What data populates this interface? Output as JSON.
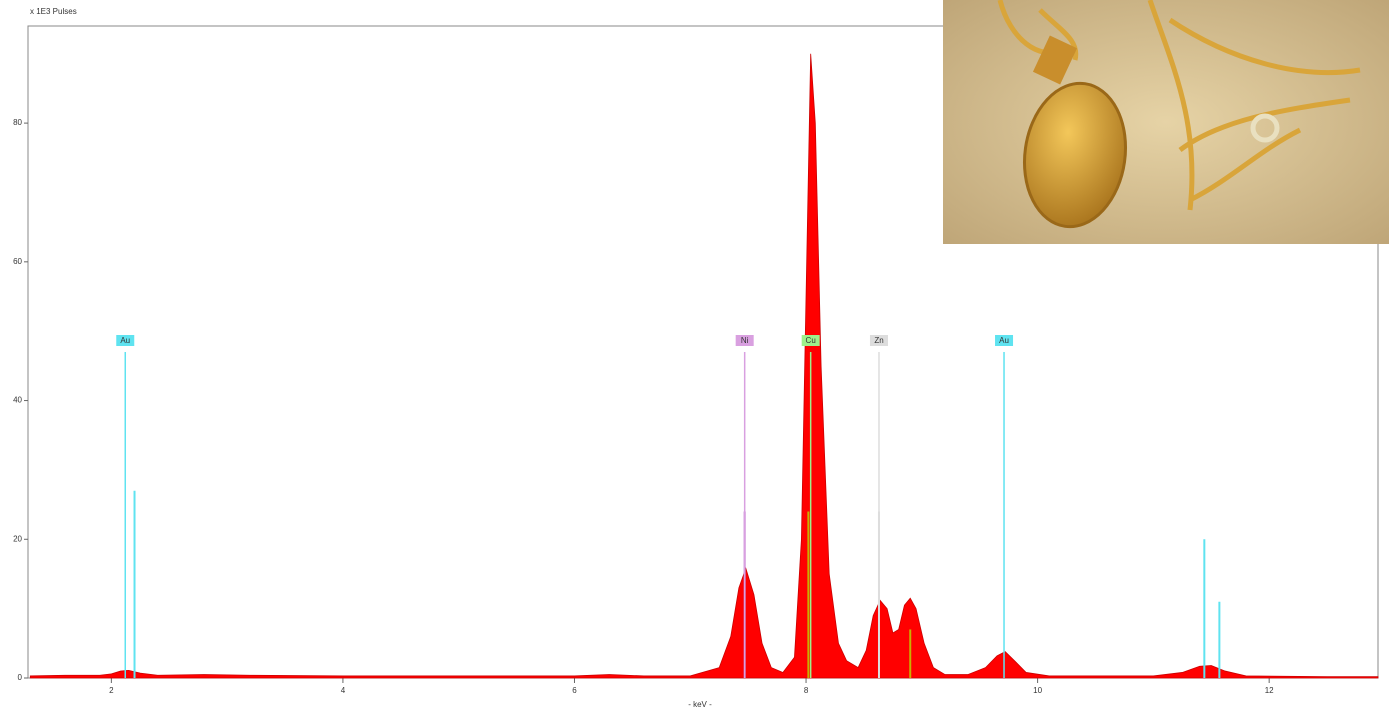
{
  "chart_data": {
    "type": "area",
    "title": "x 1E3 Pulses",
    "x_label": "- keV -",
    "xlim": [
      1.28,
      12.94
    ],
    "ylim": [
      0,
      94
    ],
    "xticks": [
      2,
      4,
      6,
      8,
      10,
      12
    ],
    "yticks": [
      0,
      20,
      40,
      60,
      80
    ],
    "series": [
      {
        "color": "#ff0000",
        "x": [
          1.3,
          1.6,
          1.9,
          2.0,
          2.08,
          2.15,
          2.25,
          2.4,
          2.8,
          3.2,
          4,
          5,
          6,
          6.3,
          6.6,
          7.0,
          7.25,
          7.35,
          7.42,
          7.48,
          7.55,
          7.62,
          7.7,
          7.8,
          7.9,
          7.96,
          8.0,
          8.04,
          8.08,
          8.13,
          8.2,
          8.28,
          8.35,
          8.45,
          8.52,
          8.58,
          8.64,
          8.7,
          8.75,
          8.8,
          8.85,
          8.9,
          8.95,
          9.02,
          9.1,
          9.2,
          9.4,
          9.55,
          9.65,
          9.72,
          9.8,
          9.9,
          10.1,
          11,
          11.25,
          11.4,
          11.5,
          11.62,
          11.8,
          12.5,
          12.94
        ],
        "values": [
          0.3,
          0.4,
          0.4,
          0.6,
          1.0,
          1.1,
          0.7,
          0.4,
          0.5,
          0.4,
          0.3,
          0.3,
          0.3,
          0.5,
          0.3,
          0.3,
          1.5,
          6,
          13,
          15.8,
          12,
          5,
          1.5,
          0.8,
          3,
          20,
          55,
          90,
          80,
          45,
          15,
          5,
          2.5,
          1.5,
          4,
          9,
          11.2,
          10,
          6.5,
          7,
          10.5,
          11.5,
          10,
          5,
          1.5,
          0.5,
          0.5,
          1.5,
          3.2,
          3.8,
          2.5,
          0.8,
          0.3,
          0.3,
          0.8,
          1.7,
          1.8,
          1.0,
          0.3,
          0.2,
          0.2
        ]
      }
    ],
    "element_markers": [
      {
        "label": "Au",
        "x": 2.12,
        "height": 47,
        "color": "#5fe3f0"
      },
      {
        "label": "Ni",
        "x": 7.47,
        "height": 47,
        "color": "#d9a0e0"
      },
      {
        "label": "Cu",
        "x": 8.04,
        "height": 47,
        "color": "#9ef08a"
      },
      {
        "label": "Zn",
        "x": 8.63,
        "height": 47,
        "color": "#dddddd"
      },
      {
        "label": "Au",
        "x": 9.71,
        "height": 47,
        "color": "#5fe3f0"
      }
    ],
    "emission_lines": [
      {
        "x": 2.2,
        "height": 27,
        "color": "#5fe3f0"
      },
      {
        "x": 7.47,
        "height": 24,
        "color": "#c070d0"
      },
      {
        "x": 8.02,
        "height": 24,
        "color": "#c8b000"
      },
      {
        "x": 8.63,
        "height": 24,
        "color": "#dddddd"
      },
      {
        "x": 8.9,
        "height": 7,
        "color": "#c8b000"
      },
      {
        "x": 11.44,
        "height": 20,
        "color": "#5fe3f0"
      },
      {
        "x": 11.57,
        "height": 11,
        "color": "#5fe3f0"
      }
    ]
  }
}
